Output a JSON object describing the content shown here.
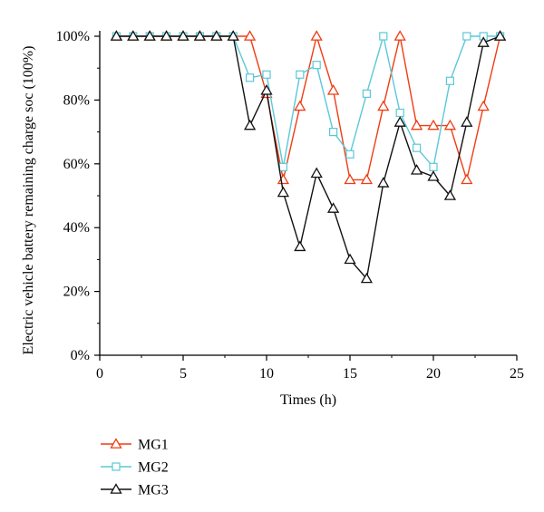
{
  "chart_data": {
    "type": "line",
    "xlabel": "Times (h)",
    "ylabel": "Electric vehicle battery remaining charge soc (100%)",
    "xlim": [
      0,
      25
    ],
    "ylim": [
      0,
      100
    ],
    "x_ticks": [
      0,
      5,
      10,
      15,
      20,
      25
    ],
    "y_ticks": [
      0,
      20,
      40,
      60,
      80,
      100
    ],
    "y_tick_labels": [
      "0%",
      "20%",
      "40%",
      "60%",
      "80%",
      "100%"
    ],
    "grid": false,
    "legend_position": "bottom-left",
    "x": [
      1,
      2,
      3,
      4,
      5,
      6,
      7,
      8,
      9,
      10,
      11,
      12,
      13,
      14,
      15,
      16,
      17,
      18,
      19,
      20,
      21,
      22,
      23,
      24
    ],
    "series": [
      {
        "name": "MG1",
        "color": "#f03c14",
        "marker": "triangle",
        "values": [
          100,
          100,
          100,
          100,
          100,
          100,
          100,
          100,
          100,
          82,
          55,
          78,
          100,
          83,
          55,
          55,
          78,
          100,
          72,
          72,
          72,
          55,
          78,
          100
        ]
      },
      {
        "name": "MG2",
        "color": "#5bc8d8",
        "marker": "square",
        "values": [
          100,
          100,
          100,
          100,
          100,
          100,
          100,
          100,
          87,
          88,
          59,
          88,
          91,
          70,
          63,
          82,
          100,
          76,
          65,
          59,
          86,
          100,
          100,
          100
        ]
      },
      {
        "name": "MG3",
        "color": "#111111",
        "marker": "triangle",
        "values": [
          100,
          100,
          100,
          100,
          100,
          100,
          100,
          100,
          72,
          83,
          51,
          34,
          57,
          46,
          30,
          24,
          54,
          73,
          58,
          56,
          50,
          73,
          98,
          100
        ]
      }
    ]
  }
}
